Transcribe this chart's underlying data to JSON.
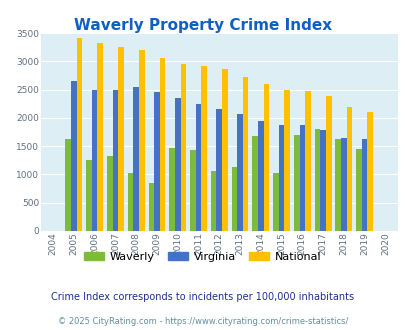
{
  "title": "Waverly Property Crime Index",
  "years": [
    "2004",
    "2005",
    "2006",
    "2007",
    "2008",
    "2009",
    "2010",
    "2011",
    "2012",
    "2013",
    "2014",
    "2015",
    "2016",
    "2017",
    "2018",
    "2019",
    "2020"
  ],
  "waverly": [
    0,
    1620,
    1250,
    1330,
    1030,
    850,
    1470,
    1430,
    1060,
    1130,
    1680,
    1030,
    1700,
    1800,
    1620,
    1450,
    0
  ],
  "virginia": [
    0,
    2650,
    2490,
    2490,
    2540,
    2460,
    2350,
    2250,
    2160,
    2070,
    1950,
    1870,
    1870,
    1790,
    1650,
    1620,
    0
  ],
  "national": [
    0,
    3420,
    3330,
    3260,
    3200,
    3050,
    2950,
    2920,
    2870,
    2730,
    2600,
    2500,
    2470,
    2380,
    2200,
    2110,
    0
  ],
  "waverly_color": "#7cbb3c",
  "virginia_color": "#4472c4",
  "national_color": "#ffc000",
  "bg_color": "#ddeef5",
  "ylim": [
    0,
    3500
  ],
  "yticks": [
    0,
    500,
    1000,
    1500,
    2000,
    2500,
    3000,
    3500
  ],
  "subtitle": "Crime Index corresponds to incidents per 100,000 inhabitants",
  "footer": "© 2025 CityRating.com - https://www.cityrating.com/crime-statistics/",
  "title_color": "#1060c0",
  "subtitle_color": "#203090",
  "footer_color": "#6090a0",
  "legend_labels": [
    "Waverly",
    "Virginia",
    "National"
  ]
}
